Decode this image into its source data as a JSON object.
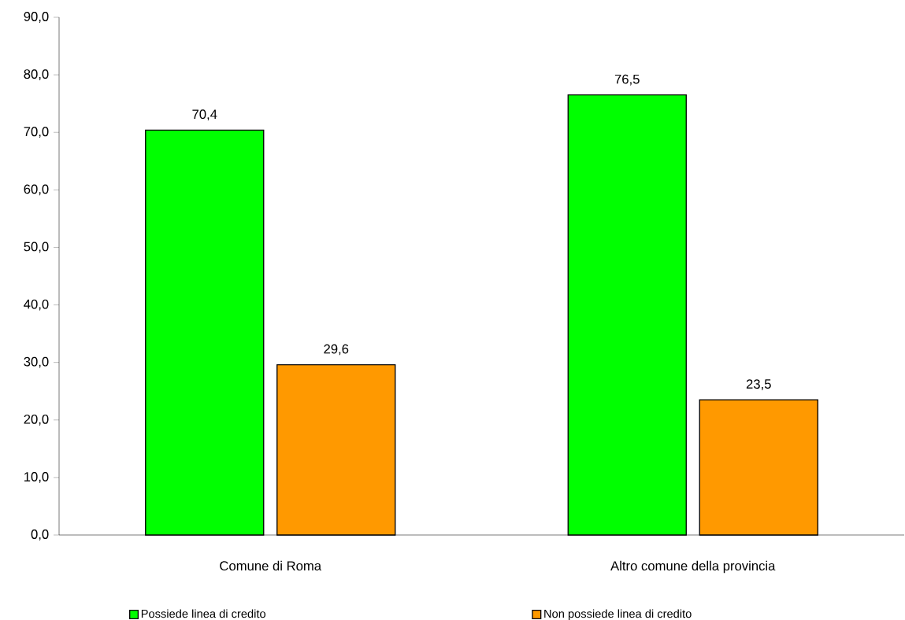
{
  "chart_data": {
    "type": "bar",
    "categories": [
      "Comune di Roma",
      "Altro comune della provincia"
    ],
    "series": [
      {
        "name": "Possiede linea di credito",
        "color": "#00ff00",
        "values": [
          70.4,
          76.5
        ],
        "value_labels": [
          "70,4",
          "76,5"
        ]
      },
      {
        "name": "Non possiede linea di credito",
        "color": "#ff9900",
        "values": [
          29.6,
          23.5
        ],
        "value_labels": [
          "29,6",
          "23,5"
        ]
      }
    ],
    "ylim": [
      0,
      90
    ],
    "yticks": [
      {
        "value": 0,
        "label": "0,0"
      },
      {
        "value": 10,
        "label": "10,0"
      },
      {
        "value": 20,
        "label": "20,0"
      },
      {
        "value": 30,
        "label": "30,0"
      },
      {
        "value": 40,
        "label": "40,0"
      },
      {
        "value": 50,
        "label": "50,0"
      },
      {
        "value": 60,
        "label": "60,0"
      },
      {
        "value": 70,
        "label": "70,0"
      },
      {
        "value": 80,
        "label": "80,0"
      },
      {
        "value": 90,
        "label": "90,0"
      }
    ],
    "grid": false,
    "legend": "bottom"
  }
}
